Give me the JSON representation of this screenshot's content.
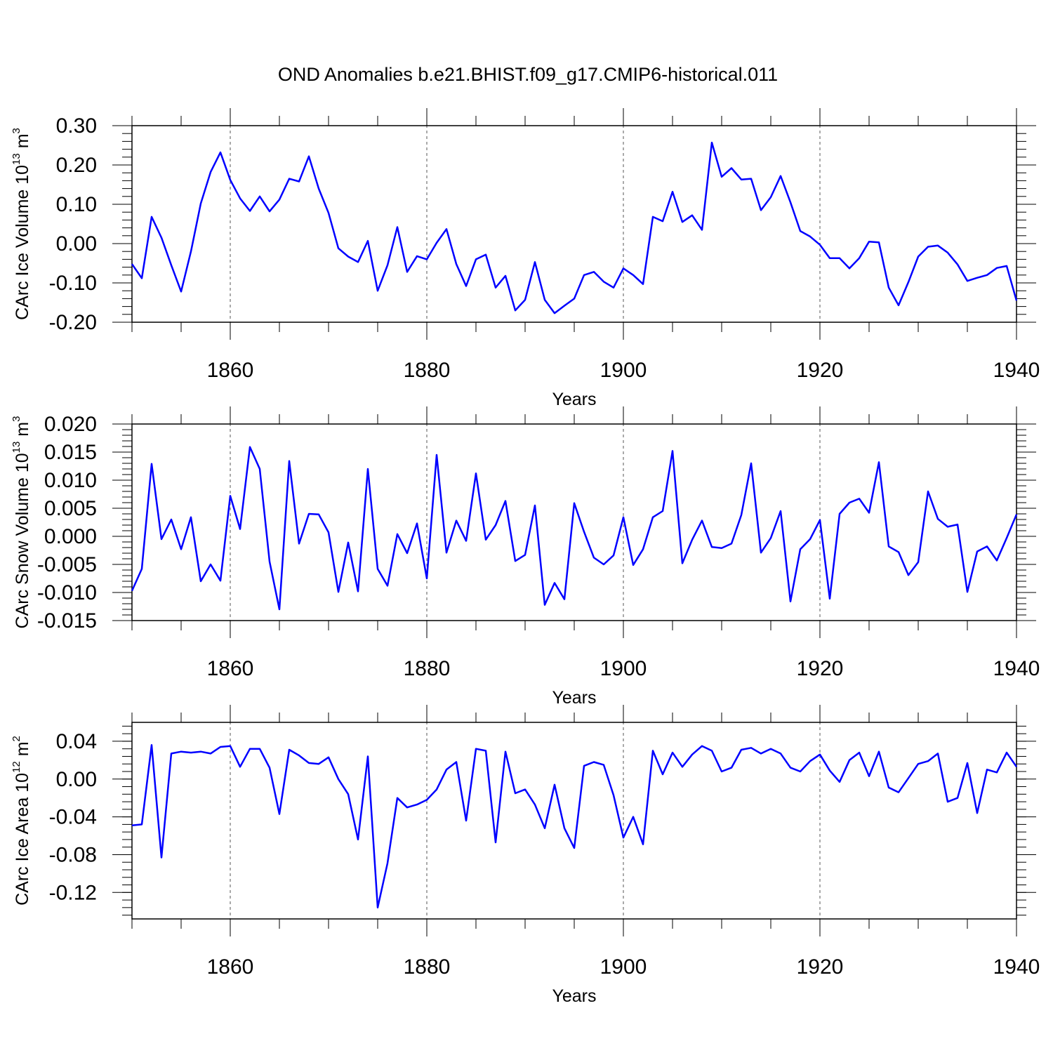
{
  "chart_data": {
    "type": "line",
    "title": "OND Anomalies b.e21.BHIST.f09_g17.CMIP6-historical.011",
    "color": "#0000ff",
    "x": [
      1850,
      1851,
      1852,
      1853,
      1854,
      1855,
      1856,
      1857,
      1858,
      1859,
      1860,
      1861,
      1862,
      1863,
      1864,
      1865,
      1866,
      1867,
      1868,
      1869,
      1870,
      1871,
      1872,
      1873,
      1874,
      1875,
      1876,
      1877,
      1878,
      1879,
      1880,
      1881,
      1882,
      1883,
      1884,
      1885,
      1886,
      1887,
      1888,
      1889,
      1890,
      1891,
      1892,
      1893,
      1894,
      1895,
      1896,
      1897,
      1898,
      1899,
      1900,
      1901,
      1902,
      1903,
      1904,
      1905,
      1906,
      1907,
      1908,
      1909,
      1910,
      1911,
      1912,
      1913,
      1914,
      1915,
      1916,
      1917,
      1918,
      1919,
      1920,
      1921,
      1922,
      1923,
      1924,
      1925,
      1926,
      1927,
      1928,
      1929,
      1930,
      1931,
      1932,
      1933,
      1934,
      1935,
      1936,
      1937,
      1938,
      1939,
      1940
    ],
    "panels": [
      {
        "ylabel": "CArc Ice Volume 10",
        "ylabel_exp": "13",
        "ylabel_unit": " m",
        "ylabel_unit_exp": "3",
        "xlabel": "Years",
        "ylim": [
          -0.2,
          0.3
        ],
        "ytick_values": [
          -0.2,
          -0.1,
          0.0,
          0.1,
          0.2,
          0.3
        ],
        "ytick_labels": [
          "-0.20",
          "-0.10",
          "0.00",
          "0.10",
          "0.20",
          "0.30"
        ],
        "xtick_values": [
          1860,
          1880,
          1900,
          1920,
          1940
        ],
        "xtick_labels": [
          "1860",
          "1880",
          "1900",
          "1920",
          "1940"
        ],
        "values": [
          -0.052,
          -0.088,
          0.068,
          0.015,
          -0.055,
          -0.122,
          -0.02,
          0.102,
          0.182,
          0.232,
          0.162,
          0.115,
          0.083,
          0.12,
          0.082,
          0.112,
          0.165,
          0.158,
          0.222,
          0.14,
          0.078,
          -0.012,
          -0.033,
          -0.047,
          0.007,
          -0.12,
          -0.055,
          0.042,
          -0.072,
          -0.032,
          -0.04,
          0.002,
          0.037,
          -0.052,
          -0.108,
          -0.04,
          -0.028,
          -0.112,
          -0.082,
          -0.17,
          -0.143,
          -0.047,
          -0.143,
          -0.177,
          -0.158,
          -0.14,
          -0.08,
          -0.072,
          -0.097,
          -0.112,
          -0.063,
          -0.08,
          -0.103,
          0.068,
          0.057,
          0.132,
          0.055,
          0.072,
          0.035,
          0.257,
          0.17,
          0.192,
          0.163,
          0.165,
          0.085,
          0.118,
          0.172,
          0.105,
          0.032,
          0.018,
          -0.003,
          -0.037,
          -0.037,
          -0.063,
          -0.037,
          0.005,
          0.003,
          -0.112,
          -0.157,
          -0.098,
          -0.033,
          -0.008,
          -0.005,
          -0.023,
          -0.053,
          -0.095,
          -0.087,
          -0.08,
          -0.062,
          -0.057,
          -0.145
        ]
      },
      {
        "ylabel": "CArc Snow Volume 10",
        "ylabel_exp": "13",
        "ylabel_unit": " m",
        "ylabel_unit_exp": "3",
        "xlabel": "Years",
        "ylim": [
          -0.015,
          0.02
        ],
        "ytick_values": [
          -0.015,
          -0.01,
          -0.005,
          0.0,
          0.005,
          0.01,
          0.015,
          0.02
        ],
        "ytick_labels": [
          "-0.015",
          "-0.010",
          "-0.005",
          "0.000",
          "0.005",
          "0.010",
          "0.015",
          "0.020"
        ],
        "xtick_values": [
          1860,
          1880,
          1900,
          1920,
          1940
        ],
        "xtick_labels": [
          "1860",
          "1880",
          "1900",
          "1920",
          "1940"
        ],
        "values": [
          -0.0097,
          -0.0058,
          0.0129,
          -0.0005,
          0.003,
          -0.0023,
          0.0034,
          -0.008,
          -0.005,
          -0.0079,
          0.0072,
          0.0013,
          0.0159,
          0.012,
          -0.0045,
          -0.013,
          0.0134,
          -0.0013,
          0.004,
          0.0039,
          0.0007,
          -0.0099,
          -0.0011,
          -0.0098,
          0.012,
          -0.0058,
          -0.0088,
          0.0004,
          -0.003,
          0.0023,
          -0.0075,
          0.0145,
          -0.0029,
          0.0028,
          -0.0008,
          0.0112,
          -0.0006,
          0.002,
          0.0063,
          -0.0044,
          -0.0033,
          0.0055,
          -0.0122,
          -0.0083,
          -0.0112,
          0.0059,
          0.0008,
          -0.0038,
          -0.005,
          -0.0034,
          0.0034,
          -0.0051,
          -0.0023,
          0.0034,
          0.0045,
          0.0152,
          -0.0048,
          -0.0006,
          0.0028,
          -0.0019,
          -0.0021,
          -0.0013,
          0.0038,
          0.013,
          -0.0029,
          -0.0003,
          0.0045,
          -0.0116,
          -0.0023,
          -0.0005,
          0.0029,
          -0.0111,
          0.004,
          0.006,
          0.0067,
          0.0042,
          0.0132,
          -0.0018,
          -0.0028,
          -0.0069,
          -0.0046,
          0.008,
          0.0031,
          0.0017,
          0.0021,
          -0.0099,
          -0.0027,
          -0.0018,
          -0.0043,
          -0.0003,
          0.0039
        ]
      },
      {
        "ylabel": "CArc Ice Area 10",
        "ylabel_exp": "12",
        "ylabel_unit": " m",
        "ylabel_unit_exp": "2",
        "xlabel": "Years",
        "ylim": [
          -0.148,
          0.06
        ],
        "ytick_values": [
          -0.12,
          -0.08,
          -0.04,
          0.0,
          0.04
        ],
        "ytick_labels": [
          "-0.12",
          "-0.08",
          "-0.04",
          "0.00",
          "0.04"
        ],
        "xtick_values": [
          1860,
          1880,
          1900,
          1920,
          1940
        ],
        "xtick_labels": [
          "1860",
          "1880",
          "1900",
          "1920",
          "1940"
        ],
        "values": [
          -0.049,
          -0.048,
          0.036,
          -0.083,
          0.027,
          0.029,
          0.028,
          0.029,
          0.027,
          0.034,
          0.035,
          0.013,
          0.032,
          0.032,
          0.012,
          -0.037,
          0.031,
          0.025,
          0.017,
          0.016,
          0.023,
          0.0,
          -0.016,
          -0.064,
          0.024,
          -0.136,
          -0.089,
          -0.02,
          -0.03,
          -0.027,
          -0.022,
          -0.011,
          0.01,
          0.018,
          -0.044,
          0.032,
          0.03,
          -0.067,
          0.029,
          -0.015,
          -0.011,
          -0.027,
          -0.052,
          -0.006,
          -0.052,
          -0.073,
          0.014,
          0.018,
          0.015,
          -0.017,
          -0.062,
          -0.04,
          -0.069,
          0.03,
          0.005,
          0.028,
          0.013,
          0.026,
          0.035,
          0.03,
          0.008,
          0.012,
          0.031,
          0.033,
          0.027,
          0.032,
          0.027,
          0.012,
          0.008,
          0.019,
          0.026,
          0.009,
          -0.003,
          0.02,
          0.028,
          0.003,
          0.029,
          -0.009,
          -0.014,
          0.001,
          0.016,
          0.019,
          0.027,
          -0.024,
          -0.02,
          0.017,
          -0.036,
          0.01,
          0.007,
          0.028,
          0.013
        ]
      }
    ]
  }
}
